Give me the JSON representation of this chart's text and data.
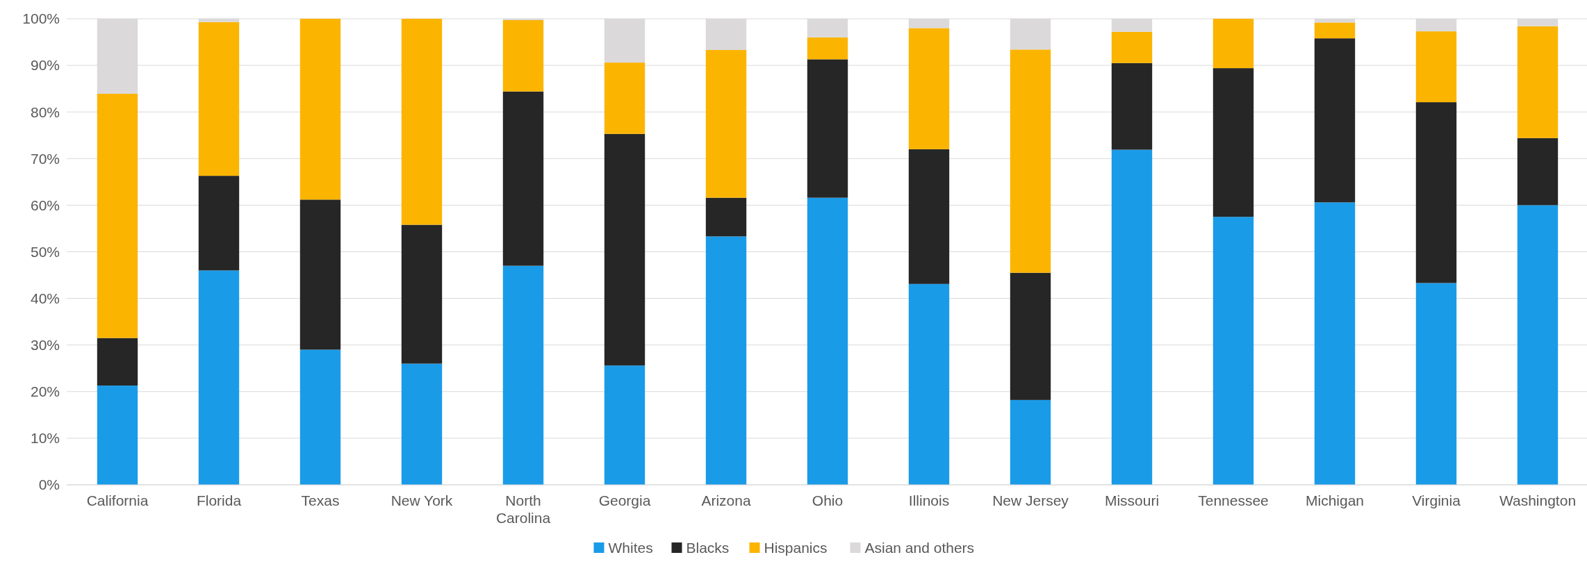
{
  "chart_data": {
    "type": "bar",
    "stacked": true,
    "categories": [
      "California",
      "Florida",
      "Texas",
      "New York",
      "North Carolina",
      "Georgia",
      "Arizona",
      "Ohio",
      "Illinois",
      "New Jersey",
      "Missouri",
      "Tennessee",
      "Michigan",
      "Virginia",
      "Washington"
    ],
    "series": [
      {
        "name": "Whites",
        "color": "#1a9be8",
        "values": [
          21.3,
          46,
          29,
          26,
          47,
          25.6,
          53.3,
          61.6,
          43.1,
          18.2,
          71.9,
          57.5,
          60.6,
          43.3,
          60
        ]
      },
      {
        "name": "Blacks",
        "color": "#262626",
        "values": [
          10.2,
          20.3,
          32.2,
          29.8,
          37.4,
          49.7,
          8.3,
          29.7,
          28.9,
          27.3,
          18.6,
          31.9,
          35.2,
          38.8,
          14.4
        ]
      },
      {
        "name": "Hispanics",
        "color": "#fbb400",
        "values": [
          52.4,
          33,
          38.8,
          44.2,
          15.3,
          15.3,
          31.7,
          4.7,
          26,
          47.9,
          6.7,
          10.6,
          3.4,
          15.2,
          24
        ]
      },
      {
        "name": "Asian and others",
        "color": "#dbd9da",
        "values": [
          16.1,
          0.7,
          null,
          null,
          0.3,
          9.4,
          6.7,
          4,
          2,
          6.6,
          2.8,
          null,
          0.8,
          2.7,
          1.6
        ]
      }
    ],
    "ylim": [
      0,
      100
    ],
    "yticks": [
      {
        "value": 0,
        "label": "0%"
      },
      {
        "value": 10,
        "label": "10%"
      },
      {
        "value": 20,
        "label": "20%"
      },
      {
        "value": 30,
        "label": "30%"
      },
      {
        "value": 40,
        "label": "40%"
      },
      {
        "value": 50,
        "label": "50%"
      },
      {
        "value": 60,
        "label": "60%"
      },
      {
        "value": 70,
        "label": "70%"
      },
      {
        "value": 80,
        "label": "80%"
      },
      {
        "value": 90,
        "label": "90%"
      },
      {
        "value": 100,
        "label": "100%"
      }
    ],
    "grid": "y",
    "legend": "bottom"
  }
}
